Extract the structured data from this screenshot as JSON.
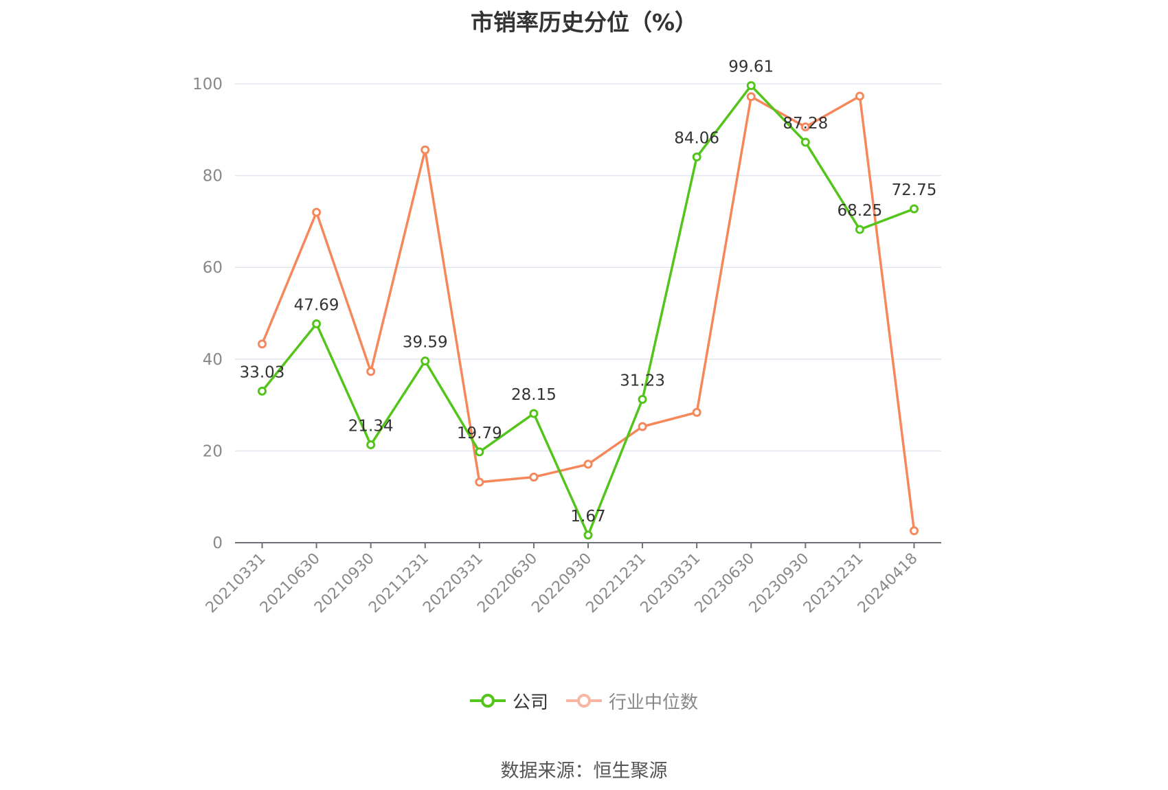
{
  "chart_data": {
    "type": "line",
    "title": "市销率历史分位（%）",
    "categories": [
      "20210331",
      "20210630",
      "20210930",
      "20211231",
      "20220331",
      "20220630",
      "20220930",
      "20221231",
      "20230331",
      "20230630",
      "20230930",
      "20231231",
      "20240418"
    ],
    "ylim": [
      0,
      100
    ],
    "yticks": [
      0,
      20,
      40,
      60,
      80,
      100
    ],
    "grid": true,
    "legend_position": "bottom",
    "series": [
      {
        "name": "公司",
        "color": "#52c41a",
        "label_points": true,
        "values": [
          33.03,
          47.69,
          21.34,
          39.59,
          19.79,
          28.15,
          1.67,
          31.23,
          84.06,
          99.61,
          87.28,
          68.25,
          72.75
        ],
        "labels": [
          "33.03",
          "47.69",
          "21.34",
          "39.59",
          "19.79",
          "28.15",
          "1.67",
          "31.23",
          "84.06",
          "99.61",
          "87.28",
          "68.25",
          "72.75"
        ]
      },
      {
        "name": "行业中位数",
        "color": "#f5875a",
        "label_points": false,
        "values": [
          43.3,
          72.0,
          37.3,
          85.6,
          13.2,
          14.3,
          17.1,
          25.3,
          28.4,
          97.2,
          90.6,
          97.3,
          2.6
        ]
      }
    ]
  },
  "legend": {
    "company": "公司",
    "industry": "行业中位数",
    "inactive_color": "#f8b6a0"
  },
  "source": "数据来源：恒生聚源"
}
